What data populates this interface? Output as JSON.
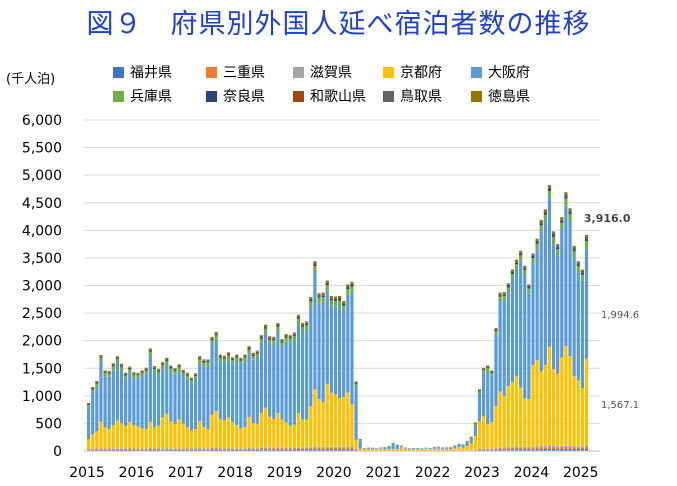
{
  "title": "図９　府県別外国人延べ宿泊者数の推移",
  "chart_data": {
    "type": "bar",
    "stacked": true,
    "unit": "(千人泊)",
    "ylim": [
      0,
      6000
    ],
    "yticks": [
      0,
      500,
      1000,
      1500,
      2000,
      2500,
      3000,
      3500,
      4000,
      4500,
      5000,
      5500,
      6000
    ],
    "ytick_labels": [
      "0",
      "500",
      "1,000",
      "1,500",
      "2,000",
      "2,500",
      "3,000",
      "3,500",
      "4,000",
      "4,500",
      "5,000",
      "5,500",
      "6,000"
    ],
    "xtick_labels": [
      "2015",
      "2016",
      "2017",
      "2018",
      "2019",
      "2020",
      "2021",
      "2022",
      "2023",
      "2024",
      "2025"
    ],
    "grid": "horizontal",
    "legend_position": "top",
    "series_names": [
      "福井県",
      "三重県",
      "滋賀県",
      "京都府",
      "大阪府",
      "兵庫県",
      "奈良県",
      "和歌山県",
      "鳥取県",
      "徳島県"
    ],
    "series_colors": [
      "#4472c4",
      "#ed7d31",
      "#a5a5a5",
      "#ffc000",
      "#5b9bd5",
      "#70ad47",
      "#264478",
      "#9e480e",
      "#636363",
      "#997300"
    ],
    "start_month": "2015-01",
    "kyoto_values": [
      180,
      260,
      310,
      480,
      380,
      350,
      420,
      500,
      450,
      400,
      480,
      420,
      400,
      360,
      350,
      470,
      380,
      410,
      560,
      620,
      480,
      440,
      520,
      450,
      380,
      330,
      350,
      480,
      380,
      340,
      600,
      660,
      520,
      500,
      560,
      470,
      420,
      360,
      380,
      560,
      450,
      440,
      630,
      720,
      560,
      520,
      620,
      510,
      460,
      400,
      420,
      620,
      500,
      500,
      740,
      1030,
      860,
      800,
      1140,
      980,
      950,
      880,
      900,
      980,
      760,
      160,
      30,
      25,
      30,
      30,
      25,
      35,
      30,
      25,
      30,
      30,
      60,
      40,
      25,
      30,
      30,
      25,
      35,
      30,
      35,
      40,
      30,
      30,
      30,
      45,
      60,
      50,
      80,
      130,
      250,
      500,
      590,
      450,
      480,
      760,
      1010,
      930,
      1100,
      1170,
      1280,
      1070,
      880,
      870,
      1480,
      1560,
      1350,
      1470,
      1790,
      1390,
      1310,
      1600,
      1800,
      1620,
      1260,
      1190,
      1050,
      1567.1
    ],
    "osaka_values": [
      570,
      760,
      810,
      1100,
      920,
      950,
      1000,
      1050,
      960,
      860,
      890,
      860,
      870,
      950,
      1000,
      1200,
      1000,
      920,
      880,
      890,
      900,
      890,
      880,
      860,
      880,
      850,
      900,
      1050,
      1100,
      1150,
      1270,
      1300,
      1050,
      1050,
      1050,
      1060,
      1160,
      1170,
      1200,
      1140,
      1150,
      1200,
      1270,
      1350,
      1320,
      1350,
      1480,
      1320,
      1460,
      1510,
      1530,
      1620,
      1600,
      1630,
      1800,
      2130,
      1740,
      1810,
      1690,
      1580,
      1600,
      1670,
      1560,
      1770,
      2020,
      960,
      150,
      10,
      10,
      10,
      10,
      10,
      20,
      40,
      90,
      60,
      20,
      10,
      10,
      10,
      10,
      10,
      10,
      10,
      20,
      20,
      15,
      15,
      20,
      30,
      40,
      40,
      60,
      80,
      200,
      500,
      780,
      960,
      840,
      1290,
      1640,
      1730,
      1700,
      1860,
      1920,
      2300,
      2240,
      1920,
      1840,
      2000,
      2540,
      2610,
      2700,
      2280,
      2150,
      2320,
      2540,
      2440,
      2150,
      1960,
      1950,
      1994.6
    ],
    "other_values": [
      120,
      140,
      150,
      160,
      160,
      150,
      170,
      170,
      170,
      160,
      160,
      150,
      150,
      150,
      160,
      190,
      160,
      160,
      170,
      180,
      170,
      170,
      170,
      160,
      160,
      150,
      160,
      190,
      180,
      170,
      200,
      200,
      180,
      180,
      180,
      170,
      170,
      160,
      170,
      200,
      180,
      180,
      200,
      220,
      200,
      200,
      220,
      200,
      200,
      190,
      200,
      230,
      220,
      220,
      250,
      280,
      260,
      260,
      260,
      250,
      250,
      260,
      260,
      270,
      290,
      140,
      40,
      20,
      20,
      20,
      15,
      20,
      20,
      25,
      30,
      25,
      20,
      15,
      15,
      15,
      15,
      15,
      15,
      15,
      20,
      20,
      20,
      20,
      20,
      25,
      30,
      30,
      40,
      50,
      70,
      120,
      140,
      140,
      140,
      180,
      220,
      220,
      240,
      260,
      270,
      260,
      240,
      230,
      260,
      290,
      300,
      300,
      330,
      310,
      290,
      320,
      350,
      340,
      310,
      290,
      290,
      354.3
    ],
    "annotations": {
      "total_last": "3,916.0",
      "osaka_last": "1,994.6",
      "kyoto_last": "1,567.1"
    }
  }
}
